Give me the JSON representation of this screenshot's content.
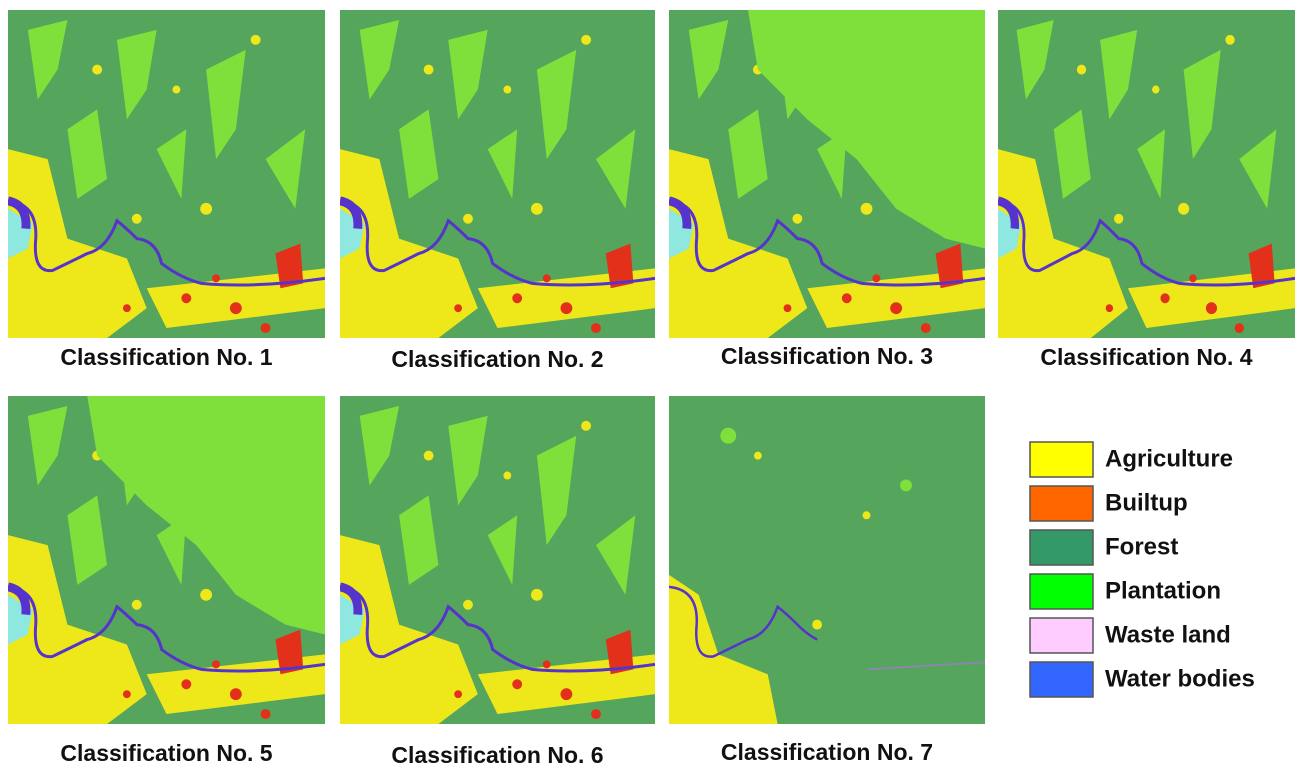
{
  "panels": [
    {
      "caption": "Classification No. 1"
    },
    {
      "caption": "Classification No. 2"
    },
    {
      "caption": "Classification No. 3"
    },
    {
      "caption": "Classification No. 4"
    },
    {
      "caption": "Classification No. 5"
    },
    {
      "caption": "Classification No. 6"
    },
    {
      "caption": "Classification No. 7"
    }
  ],
  "legend": {
    "items": [
      {
        "label": "Agriculture",
        "color": "#ffff00"
      },
      {
        "label": "Builtup",
        "color": "#ff6600"
      },
      {
        "label": "Forest",
        "color": "#339966"
      },
      {
        "label": "Plantation",
        "color": "#00ff00"
      },
      {
        "label": "Waste land",
        "color": "#ffccff"
      },
      {
        "label": "Water bodies",
        "color": "#3366ff"
      }
    ]
  }
}
